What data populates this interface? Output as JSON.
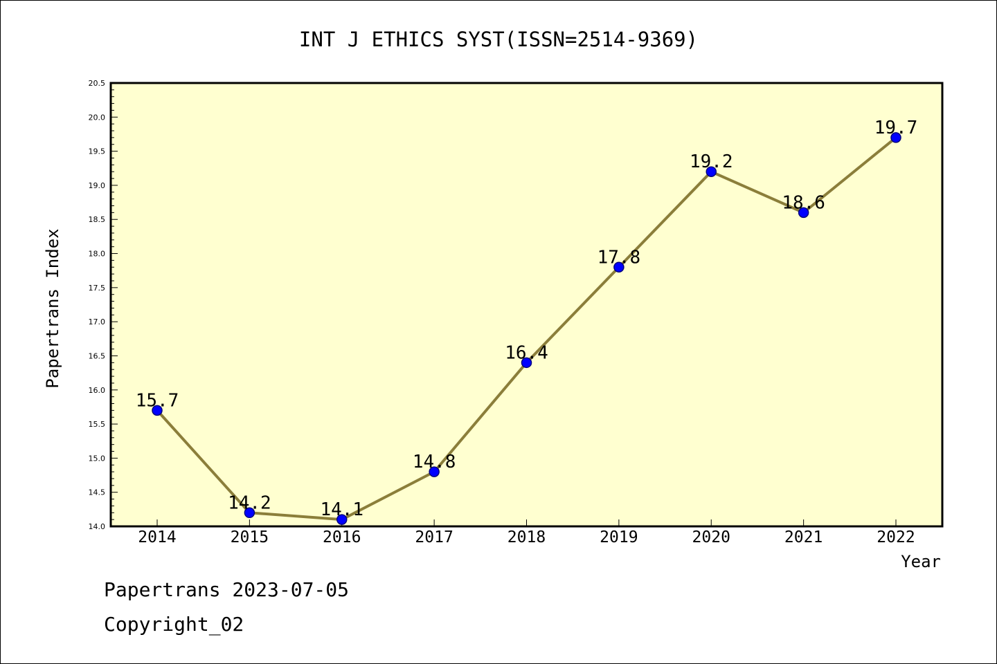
{
  "chart_data": {
    "type": "line",
    "title": "INT J ETHICS SYST(ISSN=2514-9369)",
    "xlabel": "Year",
    "ylabel": "Papertrans Index",
    "categories": [
      "2014",
      "2015",
      "2016",
      "2017",
      "2018",
      "2019",
      "2020",
      "2021",
      "2022"
    ],
    "series": [
      {
        "values": [
          15.7,
          14.2,
          14.1,
          14.8,
          16.4,
          17.8,
          19.2,
          18.6,
          19.7
        ],
        "data_labels": [
          "15.7",
          "14.2",
          "14.1",
          "14.8",
          "16.4",
          "17.8",
          "19.2",
          "18.6",
          "19.7"
        ]
      }
    ],
    "ylim": [
      14.0,
      20.5
    ],
    "yticks": [
      "14.0",
      "14.5",
      "15.0",
      "15.5",
      "16.0",
      "16.5",
      "17.0",
      "17.5",
      "18.0",
      "18.5",
      "19.0",
      "19.5",
      "20.0",
      "20.5"
    ],
    "grid": false,
    "legend": "none",
    "colors": {
      "plot_background": "#ffffd0",
      "line": "#8b7e3a",
      "marker": "#0000ff",
      "marker_edge": "#000080"
    }
  },
  "footer": {
    "line1": "Papertrans 2023-07-05",
    "line2": "Copyright_02"
  }
}
